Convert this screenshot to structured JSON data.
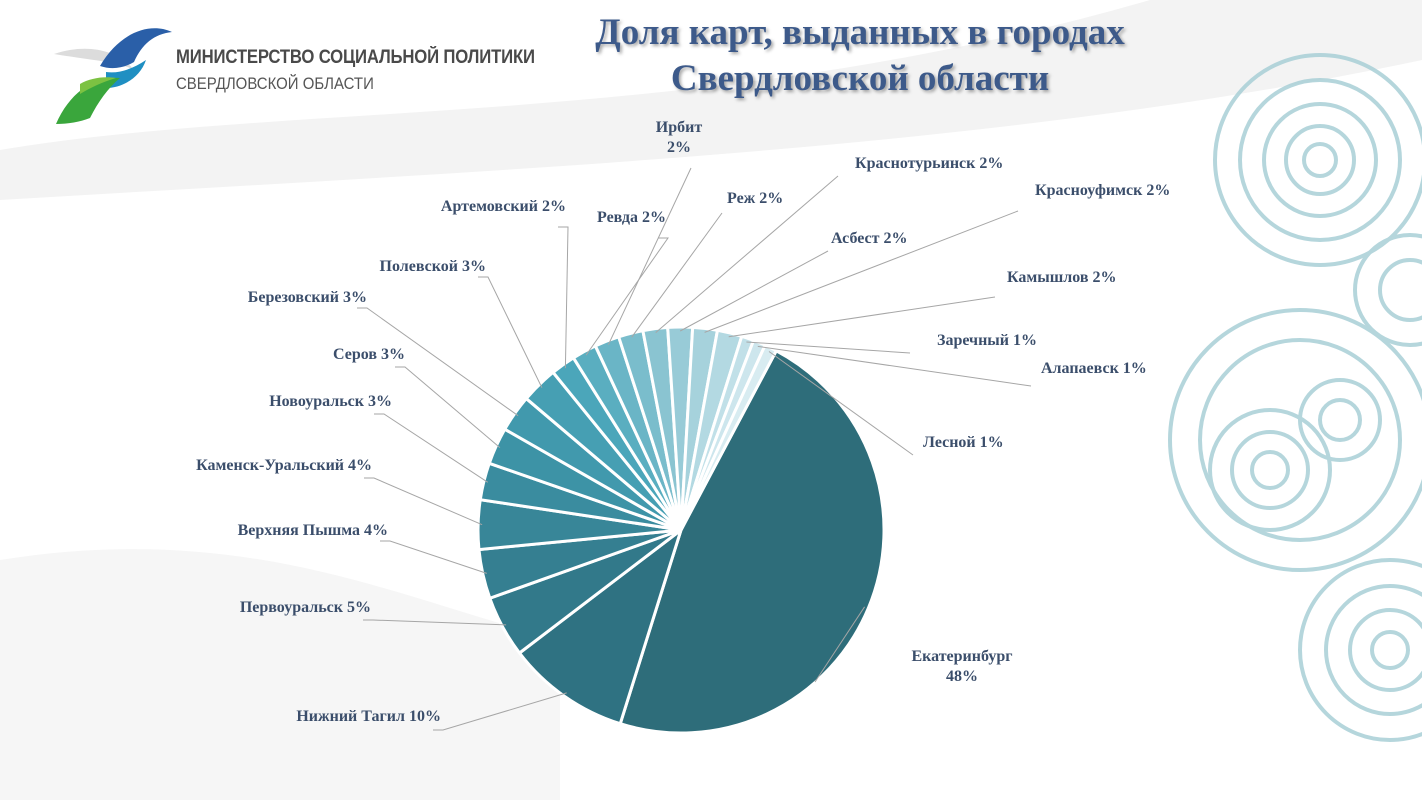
{
  "header": {
    "org_name": "МИНИСТЕРСТВО СОЦИАЛЬНОЙ ПОЛИТИКИ",
    "org_region": "СВЕРДЛОВСКОЙ ОБЛАСТИ",
    "title_line1": "Доля карт, выданных в городах",
    "title_line2": "Свердловской области"
  },
  "chart_data": {
    "type": "pie",
    "title": "Доля карт, выданных в городах Свердловской области",
    "categories": [
      "Екатеринбург",
      "Нижний Тагил",
      "Первоуральск",
      "Верхняя Пышма",
      "Каменск-Уральский",
      "Новоуральск",
      "Серов",
      "Березовский",
      "Полевской",
      "Артемовский",
      "Ревда",
      "Ирбит",
      "Реж",
      "Краснотурьинск",
      "Асбест",
      "Красноуфимск",
      "Камышлов",
      "Заречный",
      "Алапаевск",
      "Лесной"
    ],
    "values": [
      48,
      10,
      5,
      4,
      4,
      3,
      3,
      3,
      3,
      2,
      2,
      2,
      2,
      2,
      2,
      2,
      2,
      1,
      1,
      1
    ],
    "data_labels": [
      "Екатеринбург 48%",
      "Нижний Тагил 10%",
      "Первоуральск 5%",
      "Верхняя Пышма 4%",
      "Каменск-Уральский 4%",
      "Новоуральск 3%",
      "Серов 3%",
      "Березовский 3%",
      "Полевской 3%",
      "Артемовский 2%",
      "Ревда 2%",
      "Ирбит 2%",
      "Реж 2%",
      "Краснотурьинск 2%",
      "Асбест 2%",
      "Красноуфимск 2%",
      "Камышлов 2%",
      "Заречный 1%",
      "Алапаевск 1%",
      "Лесной 1%"
    ],
    "label_lines": [
      [
        "Екатеринбург",
        "48%"
      ],
      [
        "Нижний Тагил 10%"
      ],
      [
        "Первоуральск 5%"
      ],
      [
        "Верхняя Пышма 4%"
      ],
      [
        "Каменск-Уральский 4%"
      ],
      [
        "Новоуральск 3%"
      ],
      [
        "Серов 3%"
      ],
      [
        "Березовский 3%"
      ],
      [
        "Полевской 3%"
      ],
      [
        "Артемовский 2%"
      ],
      [
        "Ревда 2%"
      ],
      [
        "Ирбит",
        "2%"
      ],
      [
        "Реж 2%"
      ],
      [
        "Краснотурьинск 2%"
      ],
      [
        "Асбест 2%"
      ],
      [
        "Красноуфимск 2%"
      ],
      [
        "Камышлов 2%"
      ],
      [
        "Заречный 1%"
      ],
      [
        "Алапаевск 1%"
      ],
      [
        "Лесной 1%"
      ]
    ],
    "slice_colors": [
      "#2e6d7a",
      "#2f7282",
      "#32798a",
      "#357f91",
      "#388698",
      "#3a8c9f",
      "#3d93a6",
      "#4199ad",
      "#469fb3",
      "#4ba6ba",
      "#5aaec0",
      "#6ab5c6",
      "#7abdcc",
      "#8ac4d1",
      "#98cbd7",
      "#a6d2dc",
      "#b3d9e2",
      "#c1e0e8",
      "#cde6ed",
      "#d8ecf1"
    ],
    "legend": "none"
  }
}
